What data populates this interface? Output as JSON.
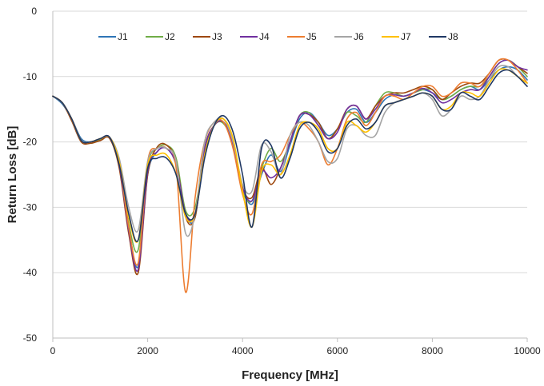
{
  "chart_data": {
    "type": "line",
    "title": "",
    "xlabel": "Frequency [MHz]",
    "ylabel": "Return Loss [dB]",
    "xlim": [
      0,
      10000
    ],
    "ylim": [
      -50,
      0
    ],
    "xticks": [
      0,
      2000,
      4000,
      6000,
      8000,
      10000
    ],
    "yticks": [
      0,
      -10,
      -20,
      -30,
      -40,
      -50
    ],
    "xtick_labels": [
      "0",
      "2000",
      "4000",
      "6000",
      "8000",
      "10000"
    ],
    "ytick_labels": [
      "0",
      "-10",
      "-20",
      "-30",
      "-40",
      "-50"
    ],
    "grid": "horizontal",
    "legend_position": "top",
    "x": [
      0,
      200,
      400,
      600,
      800,
      1000,
      1200,
      1400,
      1600,
      1800,
      2000,
      2200,
      2400,
      2600,
      2800,
      3000,
      3200,
      3400,
      3600,
      3800,
      4000,
      4200,
      4400,
      4600,
      4800,
      5000,
      5200,
      5400,
      5600,
      5800,
      6000,
      6200,
      6400,
      6600,
      6800,
      7000,
      7200,
      7400,
      7600,
      7800,
      8000,
      8200,
      8400,
      8600,
      8800,
      9000,
      9200,
      9400,
      9600,
      9800,
      10000
    ],
    "series": [
      {
        "name": "J1",
        "color": "#2e75b6",
        "values": [
          -13.0,
          -14.2,
          -16.5,
          -19.5,
          -20.0,
          -19.6,
          -19.4,
          -23.0,
          -33.0,
          -39.0,
          -25.0,
          -21.5,
          -21.0,
          -23.5,
          -31.0,
          -31.5,
          -21.0,
          -17.5,
          -17.0,
          -20.5,
          -27.0,
          -29.5,
          -25.0,
          -22.0,
          -24.5,
          -20.5,
          -16.5,
          -15.5,
          -17.0,
          -19.0,
          -18.0,
          -15.5,
          -15.0,
          -17.0,
          -15.5,
          -13.5,
          -12.8,
          -13.0,
          -12.5,
          -12.0,
          -12.5,
          -13.5,
          -13.0,
          -12.0,
          -11.5,
          -12.0,
          -10.5,
          -9.0,
          -8.5,
          -9.0,
          -10.5
        ]
      },
      {
        "name": "J2",
        "color": "#70ad47",
        "values": [
          -13.0,
          -14.0,
          -16.5,
          -19.8,
          -20.2,
          -19.7,
          -19.4,
          -23.5,
          -32.5,
          -36.5,
          -23.5,
          -21.0,
          -20.5,
          -22.5,
          -30.5,
          -30.0,
          -21.5,
          -17.5,
          -17.2,
          -20.5,
          -27.5,
          -29.0,
          -24.0,
          -21.0,
          -23.0,
          -20.0,
          -16.0,
          -15.5,
          -17.5,
          -19.5,
          -18.0,
          -15.5,
          -16.0,
          -17.0,
          -14.5,
          -12.5,
          -12.5,
          -13.0,
          -12.5,
          -12.0,
          -12.0,
          -13.5,
          -13.0,
          -12.0,
          -11.5,
          -11.5,
          -10.0,
          -8.0,
          -7.5,
          -8.5,
          -10.0
        ]
      },
      {
        "name": "J3",
        "color": "#9e480e",
        "values": [
          -13.0,
          -14.0,
          -16.8,
          -20.0,
          -20.2,
          -19.8,
          -19.5,
          -24.0,
          -34.0,
          -40.0,
          -25.0,
          -20.8,
          -20.5,
          -23.0,
          -31.5,
          -31.5,
          -21.0,
          -17.5,
          -17.0,
          -20.0,
          -27.0,
          -28.5,
          -24.0,
          -26.5,
          -24.0,
          -20.0,
          -16.0,
          -15.8,
          -17.0,
          -19.5,
          -18.0,
          -15.0,
          -14.5,
          -16.5,
          -14.5,
          -13.0,
          -12.5,
          -12.5,
          -12.0,
          -11.5,
          -12.0,
          -13.5,
          -12.5,
          -11.5,
          -11.0,
          -11.0,
          -9.5,
          -7.5,
          -7.5,
          -8.5,
          -9.5
        ]
      },
      {
        "name": "J4",
        "color": "#7030a0",
        "values": [
          -13.0,
          -14.0,
          -16.5,
          -19.8,
          -20.0,
          -19.5,
          -19.3,
          -23.5,
          -33.5,
          -39.5,
          -24.5,
          -21.5,
          -21.0,
          -23.5,
          -31.0,
          -31.0,
          -21.0,
          -17.5,
          -17.0,
          -20.5,
          -27.0,
          -29.0,
          -24.5,
          -25.5,
          -24.0,
          -20.0,
          -16.0,
          -15.8,
          -17.5,
          -19.5,
          -18.5,
          -15.0,
          -14.5,
          -16.5,
          -15.0,
          -13.0,
          -12.8,
          -13.0,
          -12.5,
          -11.8,
          -12.5,
          -14.0,
          -13.5,
          -12.5,
          -12.0,
          -12.0,
          -10.0,
          -8.0,
          -7.5,
          -8.5,
          -9.0
        ]
      },
      {
        "name": "J5",
        "color": "#ed7d31",
        "values": [
          -13.0,
          -14.0,
          -16.5,
          -19.8,
          -20.0,
          -19.5,
          -19.3,
          -23.0,
          -33.0,
          -38.5,
          -23.0,
          -21.0,
          -21.0,
          -24.0,
          -43.0,
          -28.5,
          -20.0,
          -17.0,
          -17.0,
          -21.0,
          -28.0,
          -31.0,
          -23.5,
          -23.0,
          -22.0,
          -19.0,
          -17.0,
          -18.0,
          -20.0,
          -23.5,
          -21.0,
          -16.5,
          -15.5,
          -17.5,
          -15.5,
          -13.0,
          -13.0,
          -13.5,
          -12.5,
          -11.5,
          -11.5,
          -13.0,
          -12.5,
          -11.0,
          -11.0,
          -11.5,
          -9.5,
          -7.5,
          -7.5,
          -9.0,
          -11.0
        ]
      },
      {
        "name": "J6",
        "color": "#a5a5a5",
        "values": [
          -13.0,
          -14.0,
          -16.5,
          -19.8,
          -20.0,
          -19.5,
          -19.3,
          -22.5,
          -30.0,
          -33.5,
          -23.0,
          -21.0,
          -21.0,
          -23.0,
          -34.0,
          -31.0,
          -20.0,
          -17.0,
          -16.5,
          -20.0,
          -26.5,
          -27.5,
          -20.5,
          -21.5,
          -25.0,
          -19.0,
          -17.0,
          -17.5,
          -20.0,
          -23.0,
          -22.5,
          -18.0,
          -17.5,
          -19.0,
          -19.0,
          -15.5,
          -14.0,
          -13.5,
          -13.0,
          -12.5,
          -13.5,
          -16.0,
          -15.0,
          -13.0,
          -13.5,
          -13.0,
          -10.5,
          -8.5,
          -8.5,
          -10.0,
          -11.0
        ]
      },
      {
        "name": "J7",
        "color": "#ffc000",
        "values": [
          -13.0,
          -14.0,
          -16.5,
          -19.8,
          -20.0,
          -19.5,
          -19.3,
          -23.0,
          -31.5,
          -35.0,
          -23.5,
          -22.0,
          -22.0,
          -25.0,
          -31.5,
          -31.0,
          -22.0,
          -17.5,
          -16.5,
          -19.5,
          -27.5,
          -33.0,
          -24.5,
          -23.5,
          -25.0,
          -22.0,
          -17.5,
          -17.0,
          -18.0,
          -21.0,
          -21.0,
          -17.0,
          -17.5,
          -18.5,
          -17.0,
          -14.5,
          -14.0,
          -13.5,
          -13.0,
          -12.5,
          -13.0,
          -15.0,
          -14.5,
          -12.5,
          -12.5,
          -13.0,
          -11.0,
          -9.0,
          -9.0,
          -10.0,
          -11.0
        ]
      },
      {
        "name": "J8",
        "color": "#203864",
        "values": [
          -13.0,
          -14.0,
          -16.5,
          -19.8,
          -20.0,
          -19.5,
          -19.3,
          -23.5,
          -31.0,
          -35.0,
          -24.0,
          -22.5,
          -22.5,
          -25.0,
          -31.0,
          -31.0,
          -22.5,
          -17.5,
          -16.0,
          -18.5,
          -25.0,
          -33.0,
          -21.0,
          -20.5,
          -25.5,
          -22.5,
          -18.0,
          -17.0,
          -18.5,
          -21.5,
          -21.0,
          -17.5,
          -16.5,
          -18.0,
          -17.0,
          -14.5,
          -14.0,
          -13.5,
          -13.0,
          -12.5,
          -13.0,
          -15.0,
          -15.0,
          -12.5,
          -13.0,
          -13.5,
          -11.5,
          -9.5,
          -9.0,
          -10.0,
          -11.5
        ]
      }
    ]
  }
}
